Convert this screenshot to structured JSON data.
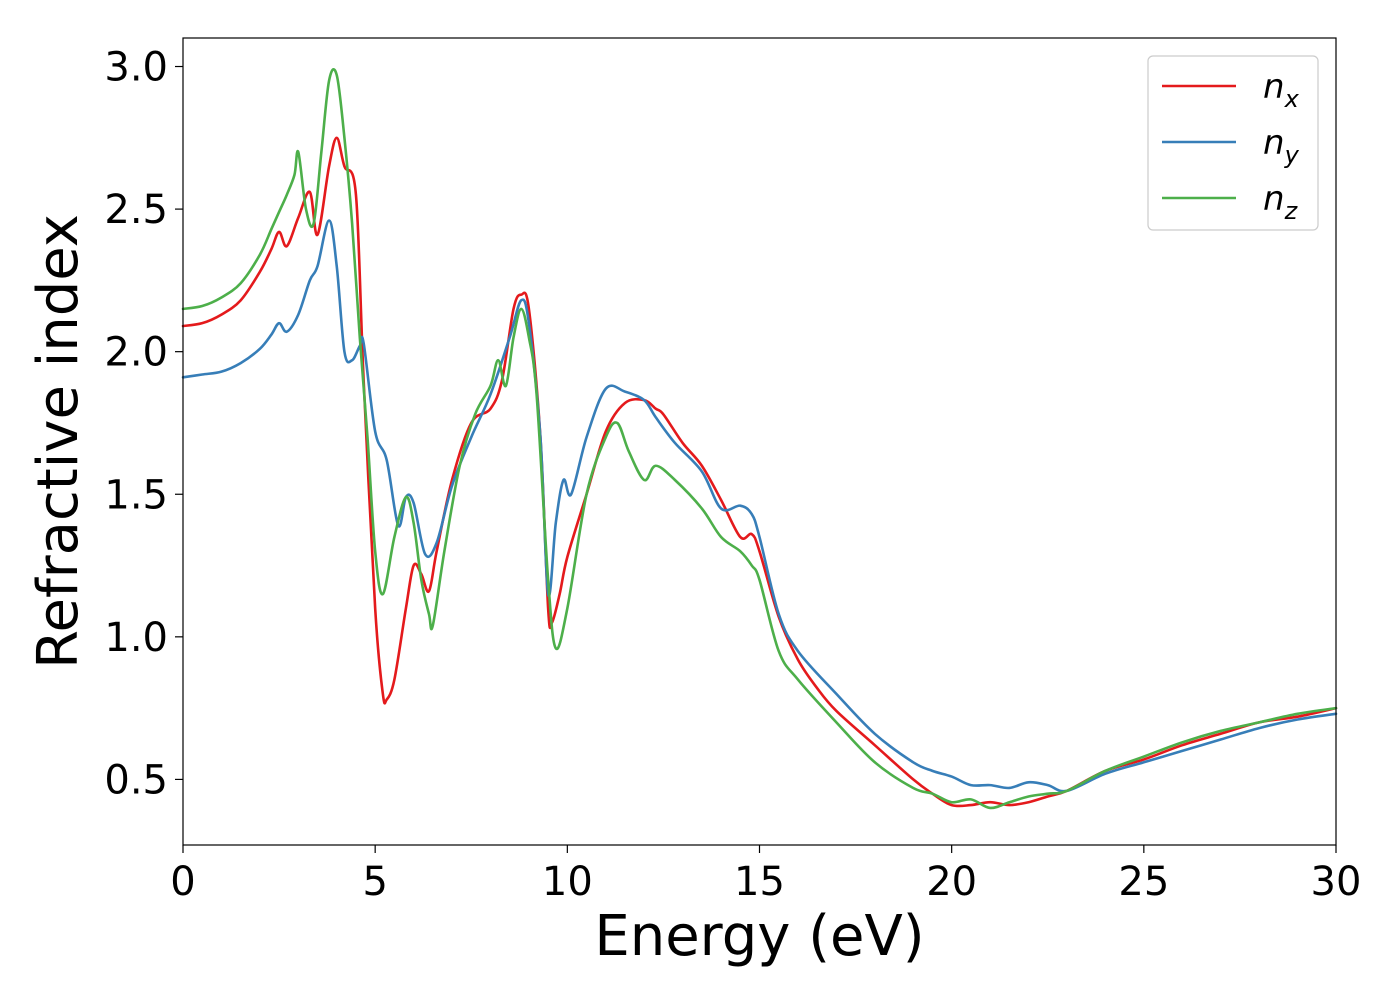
{
  "chart_data": {
    "type": "line",
    "title": "",
    "xlabel": "Energy (eV)",
    "ylabel": "Refractive index",
    "xlim": [
      0,
      30
    ],
    "ylim": [
      0.27,
      3.1
    ],
    "xticks": [
      0,
      5,
      10,
      15,
      20,
      25,
      30
    ],
    "xtick_labels": [
      "0",
      "5",
      "10",
      "15",
      "20",
      "25",
      "30"
    ],
    "yticks": [
      0.5,
      1.0,
      1.5,
      2.0,
      2.5,
      3.0
    ],
    "ytick_labels": [
      "0.5",
      "1.0",
      "1.5",
      "2.0",
      "2.5",
      "3.0"
    ],
    "grid": false,
    "legend_position": "top-right",
    "series": [
      {
        "name": "n_x",
        "label_base": "n",
        "label_sub": "x",
        "color": "#e41a1c",
        "x": [
          0,
          0.5,
          1.0,
          1.5,
          2.0,
          2.3,
          2.5,
          2.7,
          3.0,
          3.3,
          3.5,
          3.8,
          4.0,
          4.2,
          4.5,
          4.7,
          5.0,
          5.2,
          5.3,
          5.5,
          5.8,
          6.0,
          6.2,
          6.4,
          6.6,
          7.0,
          7.5,
          8.0,
          8.3,
          8.6,
          8.8,
          9.0,
          9.3,
          9.5,
          9.6,
          9.8,
          10.0,
          10.5,
          11.0,
          11.5,
          12.0,
          12.3,
          12.5,
          13.0,
          13.5,
          14.0,
          14.5,
          14.8,
          15.0,
          15.5,
          16.0,
          16.5,
          17.0,
          18.0,
          19.0,
          19.5,
          20.0,
          20.5,
          21.0,
          21.5,
          22.0,
          22.5,
          23.0,
          24.0,
          25.0,
          26.0,
          27.0,
          28.0,
          29.0,
          30.0
        ],
        "y": [
          2.09,
          2.1,
          2.13,
          2.18,
          2.28,
          2.36,
          2.42,
          2.37,
          2.47,
          2.56,
          2.41,
          2.65,
          2.75,
          2.65,
          2.55,
          1.9,
          1.1,
          0.8,
          0.78,
          0.85,
          1.1,
          1.25,
          1.22,
          1.16,
          1.3,
          1.55,
          1.75,
          1.8,
          1.9,
          2.15,
          2.2,
          2.15,
          1.7,
          1.1,
          1.05,
          1.15,
          1.28,
          1.5,
          1.72,
          1.82,
          1.83,
          1.8,
          1.78,
          1.68,
          1.6,
          1.48,
          1.35,
          1.36,
          1.3,
          1.07,
          0.92,
          0.82,
          0.74,
          0.62,
          0.5,
          0.45,
          0.41,
          0.41,
          0.42,
          0.41,
          0.42,
          0.44,
          0.46,
          0.53,
          0.57,
          0.62,
          0.66,
          0.7,
          0.72,
          0.75
        ]
      },
      {
        "name": "n_y",
        "label_base": "n",
        "label_sub": "y",
        "color": "#377eb8",
        "x": [
          0,
          0.5,
          1.0,
          1.5,
          2.0,
          2.3,
          2.5,
          2.7,
          3.0,
          3.3,
          3.5,
          3.8,
          4.0,
          4.2,
          4.4,
          4.6,
          4.7,
          5.0,
          5.3,
          5.6,
          5.8,
          6.0,
          6.3,
          6.6,
          7.0,
          7.5,
          8.0,
          8.5,
          8.8,
          9.0,
          9.3,
          9.5,
          9.7,
          9.9,
          10.1,
          10.5,
          11.0,
          11.5,
          12.0,
          12.3,
          12.8,
          13.5,
          14.0,
          14.5,
          14.8,
          15.0,
          15.5,
          16.0,
          17.0,
          18.0,
          19.0,
          19.5,
          20.0,
          20.5,
          21.0,
          21.5,
          22.0,
          22.5,
          23.0,
          24.0,
          25.0,
          26.0,
          27.0,
          28.0,
          29.0,
          30.0
        ],
        "y": [
          1.91,
          1.92,
          1.93,
          1.96,
          2.01,
          2.06,
          2.1,
          2.07,
          2.13,
          2.25,
          2.3,
          2.46,
          2.3,
          2.0,
          1.97,
          2.02,
          2.03,
          1.72,
          1.62,
          1.39,
          1.49,
          1.47,
          1.29,
          1.33,
          1.53,
          1.7,
          1.85,
          2.05,
          2.18,
          2.1,
          1.7,
          1.15,
          1.4,
          1.55,
          1.5,
          1.7,
          1.87,
          1.86,
          1.83,
          1.77,
          1.68,
          1.58,
          1.45,
          1.46,
          1.43,
          1.35,
          1.08,
          0.95,
          0.8,
          0.66,
          0.56,
          0.53,
          0.51,
          0.48,
          0.48,
          0.47,
          0.49,
          0.48,
          0.46,
          0.52,
          0.56,
          0.6,
          0.64,
          0.68,
          0.71,
          0.73
        ]
      },
      {
        "name": "n_z",
        "label_base": "n",
        "label_sub": "z",
        "color": "#4daf4a",
        "x": [
          0,
          0.5,
          1.0,
          1.5,
          2.0,
          2.3,
          2.5,
          2.7,
          2.9,
          3.0,
          3.2,
          3.4,
          3.6,
          3.8,
          4.0,
          4.2,
          4.4,
          4.6,
          4.8,
          5.0,
          5.2,
          5.5,
          5.8,
          6.0,
          6.2,
          6.4,
          6.5,
          6.8,
          7.2,
          7.6,
          8.0,
          8.2,
          8.4,
          8.6,
          8.8,
          9.0,
          9.2,
          9.5,
          9.7,
          10.0,
          10.5,
          11.0,
          11.3,
          11.6,
          12.0,
          12.3,
          12.8,
          13.5,
          14.0,
          14.5,
          14.8,
          15.0,
          15.5,
          16.0,
          17.0,
          18.0,
          19.0,
          19.5,
          20.0,
          20.5,
          21.0,
          21.5,
          22.0,
          22.5,
          23.0,
          24.0,
          25.0,
          26.0,
          27.0,
          28.0,
          29.0,
          30.0
        ],
        "y": [
          2.15,
          2.16,
          2.19,
          2.24,
          2.34,
          2.43,
          2.49,
          2.55,
          2.62,
          2.7,
          2.5,
          2.45,
          2.7,
          2.95,
          2.97,
          2.75,
          2.45,
          2.05,
          1.7,
          1.3,
          1.15,
          1.35,
          1.49,
          1.4,
          1.2,
          1.08,
          1.04,
          1.3,
          1.6,
          1.78,
          1.88,
          1.97,
          1.88,
          2.05,
          2.15,
          2.05,
          1.85,
          1.2,
          0.96,
          1.1,
          1.5,
          1.7,
          1.75,
          1.65,
          1.55,
          1.6,
          1.55,
          1.45,
          1.35,
          1.3,
          1.25,
          1.2,
          0.95,
          0.85,
          0.7,
          0.56,
          0.47,
          0.45,
          0.42,
          0.43,
          0.4,
          0.42,
          0.44,
          0.45,
          0.46,
          0.53,
          0.58,
          0.63,
          0.67,
          0.7,
          0.73,
          0.75
        ]
      }
    ]
  }
}
